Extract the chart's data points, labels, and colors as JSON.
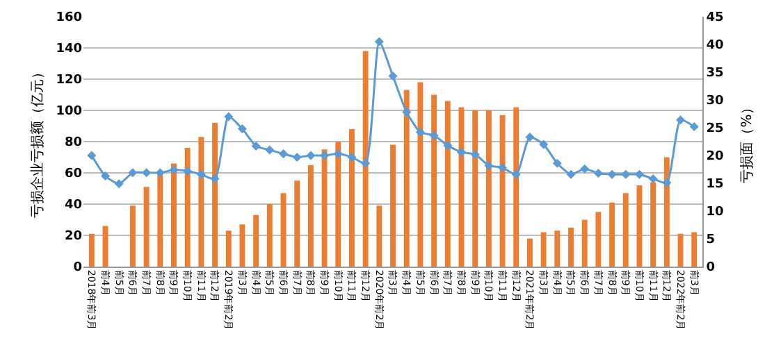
{
  "chart_data": {
    "type": "bar",
    "xlabel": null,
    "ylabel": "亏损企业亏损额（亿元）",
    "y2label": "亏损面（%）",
    "categories": [
      "2018年前3月",
      "前4月",
      "前5月",
      "前6月",
      "前7月",
      "前8月",
      "前9月",
      "前10月",
      "前11月",
      "前12月",
      "2019年前2月",
      "前3月",
      "前4月",
      "前5月",
      "前6月",
      "前7月",
      "前8月",
      "前9月",
      "前10月",
      "前11月",
      "前12月",
      "2020年前2月",
      "前3月",
      "前4月",
      "前5月",
      "前6月",
      "前7月",
      "前8月",
      "前9月",
      "前10月",
      "前11月",
      "前12月",
      "2021年前2月",
      "前3月",
      "前4月",
      "前5月",
      "前6月",
      "前7月",
      "前8月",
      "前9月",
      "前10月",
      "前11月",
      "前12月",
      "2022年前2月",
      "前3月"
    ],
    "series": [
      {
        "color": "#ed7d31",
        "values": [
          21,
          26,
          null,
          39,
          51,
          60,
          66,
          76,
          83,
          92,
          23,
          27,
          33,
          40,
          47,
          55,
          65,
          75,
          80,
          88,
          138,
          39,
          78,
          113,
          118,
          110,
          106,
          102,
          100,
          100,
          97,
          102,
          18,
          22,
          23,
          25,
          30,
          35,
          41,
          47,
          52,
          54,
          70,
          21,
          22
        ]
      },
      {
        "type": "line",
        "axis": "y2",
        "color": "#5b9bd5",
        "values": [
          20,
          16.3,
          14.9,
          16.9,
          16.9,
          16.9,
          17.4,
          17.2,
          16.6,
          15.8,
          27,
          24.8,
          21.7,
          21,
          20.3,
          19.7,
          20,
          20,
          20.3,
          19.7,
          18.6,
          40.5,
          34.3,
          27.8,
          24.2,
          23.6,
          21.8,
          20.6,
          20.2,
          18.2,
          17.8,
          16.6,
          23.3,
          22,
          18.6,
          16.6,
          17.6,
          16.8,
          16.6,
          16.6,
          16.6,
          15.8,
          15.1,
          26.4,
          25.2
        ]
      }
    ],
    "ylim": [
      0,
      160
    ],
    "yticks": [
      0,
      20,
      40,
      60,
      80,
      100,
      120,
      140,
      160
    ],
    "y2lim": [
      0,
      45
    ],
    "y2ticks": [
      0,
      5,
      10,
      15,
      20,
      25,
      30,
      35,
      40,
      45
    ],
    "grid": "y",
    "marker": "diamond",
    "line_style": "solid"
  }
}
